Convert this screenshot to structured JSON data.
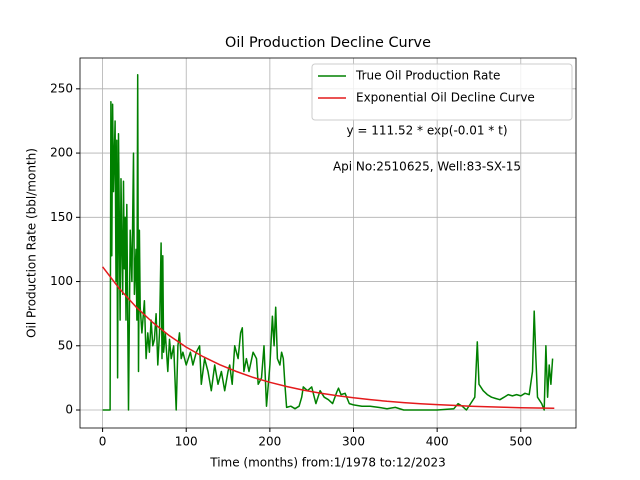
{
  "chart_data": {
    "type": "line",
    "title": "Oil Production Decline Curve",
    "xlabel": "Time (months) from:1/1978 to:12/2023",
    "ylabel": "Oil Production Rate (bbl/month)",
    "annotations": [
      "y = 111.52 * exp(-0.01 * t)",
      "Api No:2510625, Well:83-SX-15"
    ],
    "xlim": [
      -27,
      566
    ],
    "ylim": [
      -14,
      274
    ],
    "xticks": [
      0,
      100,
      200,
      300,
      400,
      500
    ],
    "yticks": [
      0,
      50,
      100,
      150,
      200,
      250
    ],
    "grid": true,
    "legend": "upper right",
    "series": [
      {
        "name": "True Oil Production Rate",
        "color": "#008000",
        "x": [
          0,
          9,
          10,
          11,
          12,
          13,
          15,
          16,
          17,
          18,
          19,
          20,
          21,
          22,
          23,
          24,
          25,
          26,
          27,
          28,
          29,
          31,
          33,
          35,
          37,
          38,
          40,
          41,
          42,
          43,
          44,
          45,
          47,
          50,
          52,
          54,
          56,
          58,
          60,
          62,
          64,
          66,
          68,
          70,
          71,
          72,
          73,
          75,
          78,
          80,
          82,
          85,
          88,
          90,
          92,
          94,
          96,
          100,
          105,
          108,
          112,
          116,
          118,
          122,
          126,
          130,
          134,
          138,
          142,
          146,
          150,
          152,
          155,
          158,
          162,
          165,
          167,
          169,
          172,
          175,
          180,
          184,
          186,
          190,
          193,
          196,
          200,
          203,
          205,
          207,
          209,
          212,
          214,
          216,
          218,
          220,
          225,
          230,
          235,
          238,
          240,
          245,
          250,
          255,
          260,
          265,
          270,
          275,
          280,
          282,
          285,
          290,
          295,
          300,
          310,
          320,
          330,
          340,
          350,
          360,
          380,
          400,
          420,
          425,
          430,
          435,
          440,
          445,
          448,
          450,
          455,
          460,
          465,
          470,
          475,
          480,
          485,
          490,
          495,
          500,
          505,
          510,
          514,
          516,
          518,
          520,
          525,
          528,
          530,
          532,
          534,
          536,
          538
        ],
        "values": [
          0,
          0,
          240,
          120,
          238,
          170,
          225,
          100,
          210,
          25,
          215,
          150,
          70,
          180,
          130,
          90,
          178,
          110,
          150,
          70,
          160,
          0,
          140,
          100,
          200,
          90,
          125,
          70,
          261,
          30,
          140,
          80,
          60,
          85,
          40,
          60,
          45,
          70,
          50,
          55,
          75,
          35,
          60,
          130,
          40,
          120,
          45,
          60,
          30,
          55,
          40,
          50,
          0,
          50,
          60,
          40,
          45,
          35,
          45,
          35,
          45,
          50,
          20,
          40,
          30,
          15,
          35,
          20,
          30,
          15,
          30,
          35,
          20,
          50,
          40,
          60,
          64,
          30,
          40,
          30,
          45,
          40,
          20,
          25,
          50,
          3,
          35,
          73,
          50,
          80,
          40,
          35,
          45,
          40,
          20,
          2,
          3,
          1,
          3,
          10,
          18,
          15,
          18,
          5,
          15,
          10,
          8,
          5,
          14,
          17,
          12,
          13,
          5,
          4,
          3,
          3,
          2,
          1,
          2,
          0,
          0,
          0,
          1,
          5,
          3,
          0,
          5,
          10,
          53,
          20,
          15,
          12,
          10,
          9,
          8,
          10,
          12,
          11,
          12,
          11,
          13,
          12,
          30,
          77,
          40,
          10,
          5,
          0,
          50,
          10,
          35,
          20,
          40
        ]
      },
      {
        "name": "Exponential Oil Decline Curve",
        "color": "#e41a1c",
        "x": [
          0,
          20,
          40,
          60,
          80,
          100,
          120,
          140,
          160,
          180,
          200,
          220,
          240,
          260,
          280,
          300,
          320,
          340,
          360,
          380,
          400,
          420,
          440,
          460,
          480,
          500,
          520,
          540
        ],
        "values": [
          111.5,
          94.6,
          80.3,
          68.1,
          57.8,
          49.0,
          41.6,
          35.3,
          30.0,
          25.4,
          21.6,
          18.3,
          15.5,
          13.2,
          11.2,
          9.5,
          8.1,
          6.8,
          5.8,
          4.9,
          4.2,
          3.6,
          3.0,
          2.6,
          2.2,
          1.8,
          1.6,
          1.3
        ]
      }
    ]
  }
}
